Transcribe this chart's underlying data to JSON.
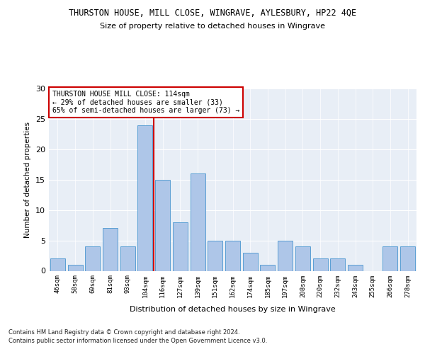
{
  "title": "THURSTON HOUSE, MILL CLOSE, WINGRAVE, AYLESBURY, HP22 4QE",
  "subtitle": "Size of property relative to detached houses in Wingrave",
  "xlabel": "Distribution of detached houses by size in Wingrave",
  "ylabel": "Number of detached properties",
  "categories": [
    "46sqm",
    "58sqm",
    "69sqm",
    "81sqm",
    "93sqm",
    "104sqm",
    "116sqm",
    "127sqm",
    "139sqm",
    "151sqm",
    "162sqm",
    "174sqm",
    "185sqm",
    "197sqm",
    "208sqm",
    "220sqm",
    "232sqm",
    "243sqm",
    "255sqm",
    "266sqm",
    "278sqm"
  ],
  "values": [
    2,
    1,
    4,
    7,
    4,
    24,
    15,
    8,
    16,
    5,
    5,
    3,
    1,
    5,
    4,
    2,
    2,
    1,
    0,
    4,
    4
  ],
  "bar_color": "#aec6e8",
  "bar_edge_color": "#5a9fd4",
  "highlight_line_color": "#cc0000",
  "annotation_text": "THURSTON HOUSE MILL CLOSE: 114sqm\n← 29% of detached houses are smaller (33)\n65% of semi-detached houses are larger (73) →",
  "annotation_box_color": "#ffffff",
  "annotation_box_edge": "#cc0000",
  "ylim": [
    0,
    30
  ],
  "yticks": [
    0,
    5,
    10,
    15,
    20,
    25,
    30
  ],
  "footer1": "Contains HM Land Registry data © Crown copyright and database right 2024.",
  "footer2": "Contains public sector information licensed under the Open Government Licence v3.0.",
  "bg_color": "#e8eef6",
  "fig_bg_color": "#ffffff"
}
